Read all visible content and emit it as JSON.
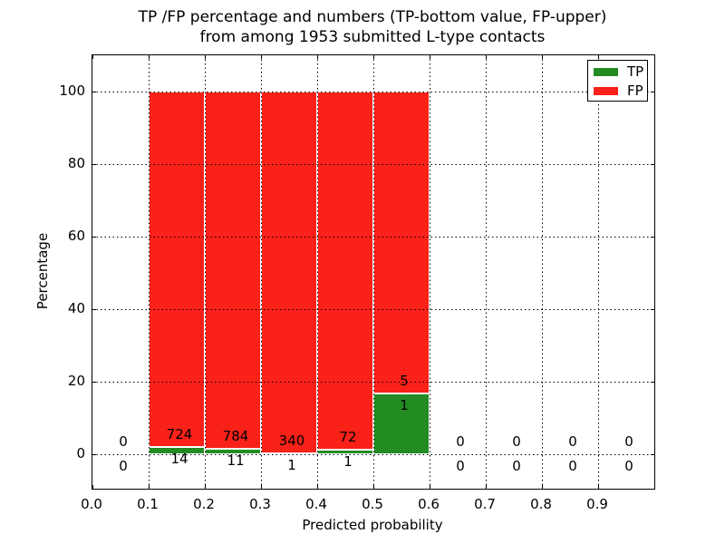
{
  "figure": {
    "title_line1": "TP /FP percentage and numbers (TP-bottom value, FP-upper)",
    "title_line2": "from among 1953 submitted L-type contacts"
  },
  "legend": {
    "tp_label": "TP",
    "fp_label": "FP"
  },
  "colors": {
    "tp_green": "#228b22",
    "fp_red": "#fa2119",
    "bar_edge": "#ffffff",
    "axes": "#000000",
    "background": "#ffffff"
  },
  "chart_data": {
    "type": "bar",
    "stacked": true,
    "title": "TP /FP percentage and numbers (TP-bottom value, FP-upper) from among 1953 submitted L-type contacts",
    "submitted_contacts_total": 1953,
    "xlabel": "Predicted probability",
    "ylabel": "Percentage",
    "xlim": [
      0.0,
      1.0
    ],
    "ylim": [
      0,
      100
    ],
    "grid": "dotted",
    "legend_position": "upper right",
    "bin_width": 0.1,
    "bin_starts": [
      0.0,
      0.1,
      0.2,
      0.3,
      0.4,
      0.5,
      0.6,
      0.7,
      0.8,
      0.9
    ],
    "x_tick_labels": [
      "0.0",
      "0.1",
      "0.2",
      "0.3",
      "0.4",
      "0.5",
      "0.6",
      "0.7",
      "0.8",
      "0.9"
    ],
    "y_tick_values": [
      0,
      20,
      40,
      60,
      80,
      100
    ],
    "y_tick_labels": [
      "0",
      "20",
      "40",
      "60",
      "80",
      "100"
    ],
    "bar_value_mode": "percent_within_bin_stacked_to_100",
    "series": [
      {
        "name": "TP",
        "color": "#228b22",
        "counts": [
          0,
          14,
          11,
          1,
          1,
          1,
          0,
          0,
          0,
          0
        ]
      },
      {
        "name": "FP",
        "color": "#fa2119",
        "counts": [
          0,
          724,
          784,
          340,
          72,
          5,
          0,
          0,
          0,
          0
        ]
      }
    ],
    "annotation_note": "FP count printed above TP/FP boundary, TP count printed below it"
  }
}
